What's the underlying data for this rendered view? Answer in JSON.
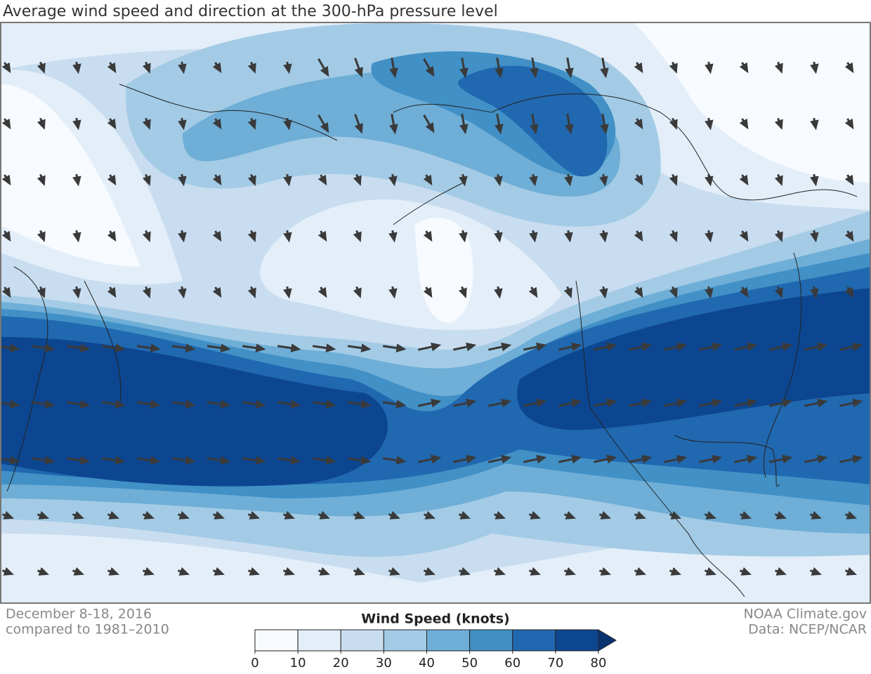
{
  "title": "Average wind speed and direction at the 300-hPa pressure level",
  "period": "December 8-18, 2016",
  "comparison": "compared to 1981–2010",
  "credit": "NOAA Climate.gov",
  "source": "Data: NCEP/NCAR",
  "legend": {
    "title": "Wind Speed (knots)",
    "ticks": [
      0,
      10,
      20,
      30,
      40,
      50,
      60,
      70,
      80
    ],
    "colors": [
      "#f7fbff",
      "#e3eef9",
      "#c9ddf0",
      "#a3cbe5",
      "#6eaed7",
      "#4190c6",
      "#2068b0",
      "#0d4690"
    ],
    "overflow_color": "#0b3370"
  }
}
